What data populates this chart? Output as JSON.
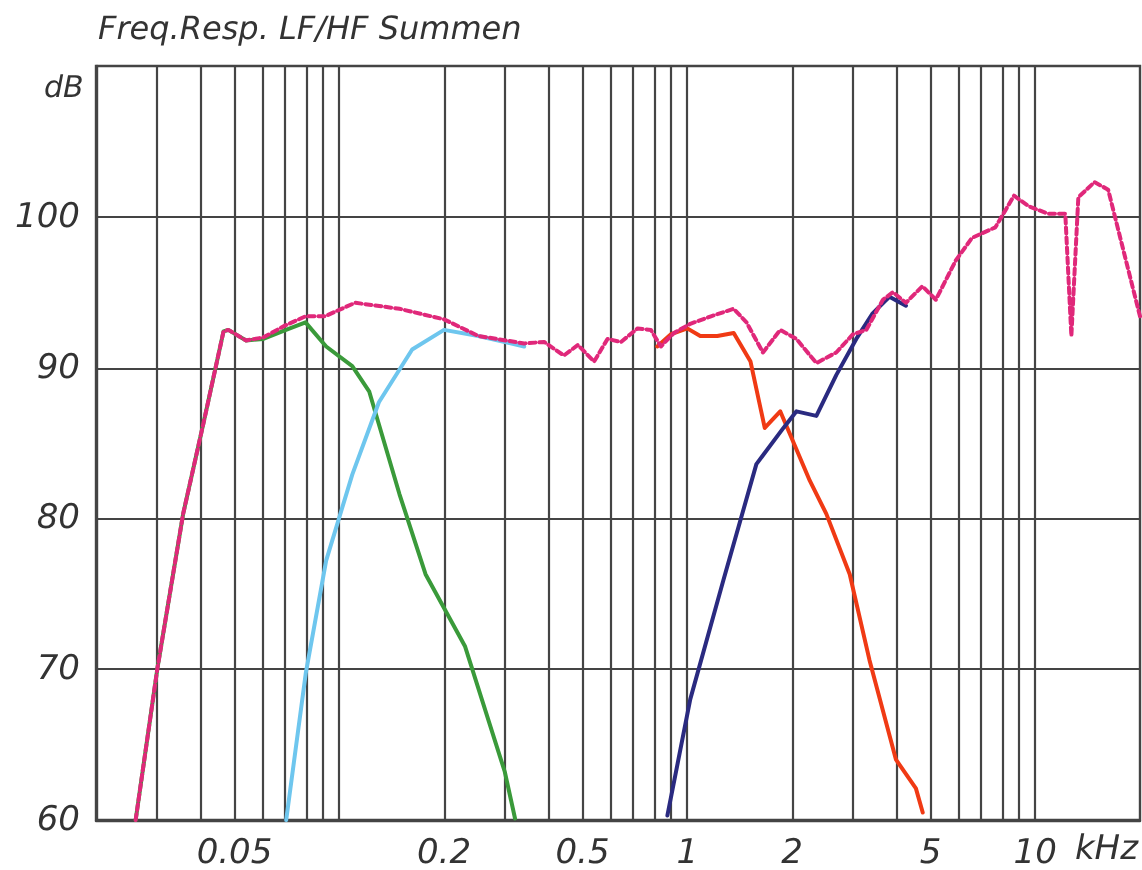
{
  "chart_data": {
    "type": "line",
    "title": "Freq.Resp. LF/HF Summen",
    "xlabel": "kHz",
    "ylabel": "dB",
    "log": "x",
    "grid": true,
    "marker": "none",
    "xlim": [
      0.02,
      20
    ],
    "ylim": [
      60,
      110
    ],
    "xticks": [
      {
        "value": 0.03,
        "label": null
      },
      {
        "value": 0.04,
        "label": null
      },
      0.05,
      {
        "value": 0.06,
        "label": null
      },
      {
        "value": 0.07,
        "label": null
      },
      {
        "value": 0.08,
        "label": null
      },
      {
        "value": 0.09,
        "label": null
      },
      {
        "value": 0.1,
        "label": null
      },
      0.2,
      {
        "value": 0.3,
        "label": null
      },
      {
        "value": 0.4,
        "label": null
      },
      0.5,
      {
        "value": 0.6,
        "label": null
      },
      {
        "value": 0.7,
        "label": null
      },
      {
        "value": 0.8,
        "label": null
      },
      {
        "value": 0.9,
        "label": null
      },
      1,
      2,
      {
        "value": 3,
        "label": null
      },
      {
        "value": 4,
        "label": null
      },
      5,
      {
        "value": 6,
        "label": null
      },
      {
        "value": 7,
        "label": null
      },
      {
        "value": 8,
        "label": null
      },
      {
        "value": 9,
        "label": null
      },
      10
    ],
    "yticks": [
      60,
      70,
      80,
      90,
      100
    ],
    "series": [
      {
        "color": "#3a9a3a",
        "line_style": "solid",
        "x": [
          0.026,
          0.03,
          0.0356,
          0.0408,
          0.0465,
          0.048,
          0.054,
          0.0605,
          0.0703,
          0.08,
          0.0917,
          0.109,
          0.122,
          0.149,
          0.177,
          0.23,
          0.299,
          0.32
        ],
        "values": [
          60,
          70,
          80.3,
          86.4,
          92.4,
          92.5,
          91.8,
          91.9,
          92.5,
          93,
          91.4,
          90.1,
          88.4,
          81.6,
          76.3,
          71.5,
          63.2,
          60.1
        ]
      },
      {
        "color": "#6ec6ee",
        "line_style": "solid",
        "x": [
          0.0704,
          0.0801,
          0.0917,
          0.109,
          0.13,
          0.162,
          0.2,
          0.251,
          0.34
        ],
        "values": [
          60,
          69.7,
          77.2,
          82.9,
          87.7,
          91.2,
          92.5,
          92.1,
          91.4
        ]
      },
      {
        "color": "#f03a14",
        "line_style": "solid",
        "x": [
          0.82,
          0.896,
          1.0,
          1.09,
          1.22,
          1.36,
          1.52,
          1.67,
          1.85,
          2.25,
          2.51,
          2.93,
          3.34,
          3.98,
          4.54,
          4.75
        ],
        "values": [
          91.4,
          92.2,
          92.6,
          92.1,
          92.1,
          92.3,
          90.4,
          86,
          87.1,
          82.5,
          80.3,
          76.3,
          70.6,
          64,
          62.1,
          60.5
        ]
      },
      {
        "color": "#2a2a80",
        "line_style": "solid",
        "x": [
          0.877,
          1.02,
          1.27,
          1.58,
          1.89,
          2.06,
          2.35,
          2.68,
          3.06,
          3.41,
          3.81,
          4.25
        ],
        "values": [
          60.3,
          68,
          75.9,
          83.6,
          86,
          87.1,
          86.8,
          89.5,
          91.9,
          93.6,
          94.7,
          94.1
        ]
      },
      {
        "color": "#e0287a",
        "line_style": "dashed",
        "x": [
          0.026,
          0.03,
          0.0356,
          0.0408,
          0.0465,
          0.048,
          0.054,
          0.0605,
          0.07,
          0.08,
          0.091,
          0.111,
          0.149,
          0.2,
          0.251,
          0.34,
          0.388,
          0.442,
          0.485,
          0.54,
          0.59,
          0.645,
          0.72,
          0.786,
          0.84,
          0.916,
          1.02,
          1.17,
          1.36,
          1.48,
          1.65,
          1.85,
          2.06,
          2.35,
          2.68,
          2.99,
          3.27,
          3.65,
          3.9,
          4.25,
          4.74,
          5.18,
          5.91,
          6.58,
          7.68,
          8.69,
          9.57,
          10.9,
          12.2,
          12.7,
          13.3,
          14.8,
          16.2,
          20
        ],
        "values": [
          60,
          70,
          80.3,
          86.4,
          92.4,
          92.5,
          91.8,
          92,
          92.8,
          93.4,
          93.4,
          94.3,
          93.9,
          93.2,
          92.1,
          91.6,
          91.7,
          90.8,
          91.5,
          90.4,
          91.9,
          91.7,
          92.6,
          92.5,
          91.4,
          92.3,
          92.9,
          93.4,
          93.9,
          93,
          91,
          92.5,
          91.9,
          90.3,
          91,
          92.2,
          92.5,
          94.5,
          95,
          94.3,
          95.4,
          94.5,
          97.1,
          98.6,
          99.3,
          101.4,
          100.7,
          100.2,
          100.2,
          92.1,
          101.3,
          102.3,
          101.8,
          93.4
        ]
      }
    ]
  }
}
